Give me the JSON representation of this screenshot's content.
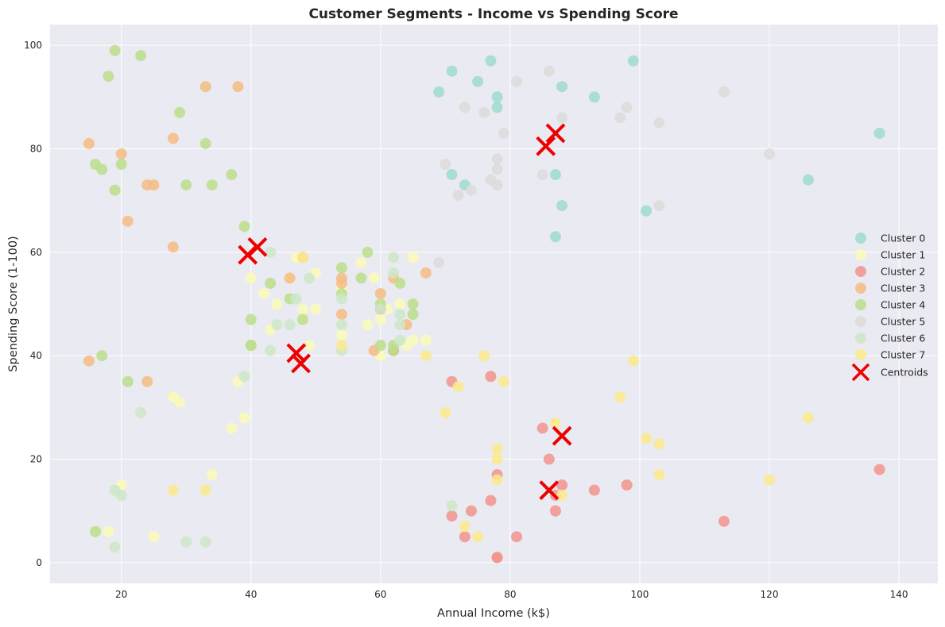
{
  "chart_data": {
    "type": "scatter",
    "title": "Customer Segments - Income vs Spending Score",
    "xlabel": "Annual Income (k$)",
    "ylabel": "Spending Score (1-100)",
    "xlim": [
      9,
      146
    ],
    "ylim": [
      -4,
      104
    ],
    "xticks": [
      20,
      40,
      60,
      80,
      100,
      120,
      140
    ],
    "yticks": [
      0,
      20,
      40,
      60,
      80,
      100
    ],
    "grid": true,
    "legend_position": "right",
    "background": "#eaeaf2",
    "series": [
      {
        "name": "Cluster 0",
        "color": "#9edad0",
        "points": [
          [
            69,
            91
          ],
          [
            71,
            95
          ],
          [
            75,
            93
          ],
          [
            77,
            97
          ],
          [
            78,
            90
          ],
          [
            78,
            88
          ],
          [
            88,
            92
          ],
          [
            93,
            90
          ],
          [
            99,
            97
          ],
          [
            137,
            83
          ],
          [
            126,
            74
          ],
          [
            87,
            75
          ],
          [
            71,
            75
          ],
          [
            73,
            73
          ],
          [
            88,
            69
          ],
          [
            101,
            68
          ],
          [
            87,
            63
          ]
        ]
      },
      {
        "name": "Cluster 1",
        "color": "#fafab8",
        "points": [
          [
            18,
            6
          ],
          [
            20,
            15
          ],
          [
            25,
            5
          ],
          [
            28,
            32
          ],
          [
            29,
            31
          ],
          [
            34,
            17
          ],
          [
            37,
            26
          ],
          [
            38,
            35
          ],
          [
            39,
            28
          ],
          [
            40,
            55
          ],
          [
            42,
            52
          ],
          [
            43,
            45
          ],
          [
            44,
            50
          ],
          [
            46,
            55
          ],
          [
            47,
            59
          ],
          [
            48,
            49
          ],
          [
            48,
            47
          ],
          [
            49,
            42
          ],
          [
            50,
            56
          ],
          [
            50,
            49
          ],
          [
            54,
            53
          ],
          [
            54,
            44
          ],
          [
            57,
            58
          ],
          [
            58,
            46
          ],
          [
            59,
            55
          ],
          [
            60,
            40
          ],
          [
            60,
            47
          ],
          [
            61,
            49
          ],
          [
            62,
            55
          ],
          [
            63,
            50
          ],
          [
            64,
            42
          ],
          [
            65,
            43
          ],
          [
            65,
            59
          ],
          [
            67,
            43
          ]
        ]
      },
      {
        "name": "Cluster 2",
        "color": "#f2948c",
        "points": [
          [
            71,
            35
          ],
          [
            71,
            9
          ],
          [
            73,
            5
          ],
          [
            74,
            10
          ],
          [
            77,
            36
          ],
          [
            77,
            12
          ],
          [
            78,
            17
          ],
          [
            78,
            1
          ],
          [
            78,
            1
          ],
          [
            81,
            5
          ],
          [
            85,
            26
          ],
          [
            86,
            20
          ],
          [
            87,
            13
          ],
          [
            87,
            10
          ],
          [
            88,
            15
          ],
          [
            93,
            14
          ],
          [
            98,
            15
          ],
          [
            113,
            8
          ],
          [
            137,
            18
          ],
          [
            60,
            49
          ],
          [
            62,
            41
          ]
        ]
      },
      {
        "name": "Cluster 3",
        "color": "#f4bc84",
        "points": [
          [
            15,
            81
          ],
          [
            15,
            39
          ],
          [
            20,
            79
          ],
          [
            21,
            66
          ],
          [
            24,
            73
          ],
          [
            25,
            73
          ],
          [
            24,
            35
          ],
          [
            28,
            82
          ],
          [
            28,
            61
          ],
          [
            33,
            92
          ],
          [
            38,
            92
          ],
          [
            46,
            55
          ],
          [
            48,
            59
          ],
          [
            54,
            55
          ],
          [
            54,
            54
          ],
          [
            54,
            48
          ],
          [
            59,
            41
          ],
          [
            60,
            52
          ],
          [
            62,
            55
          ],
          [
            64,
            46
          ],
          [
            67,
            56
          ]
        ]
      },
      {
        "name": "Cluster 4",
        "color": "#bcde8c",
        "points": [
          [
            19,
            99
          ],
          [
            23,
            98
          ],
          [
            18,
            94
          ],
          [
            29,
            87
          ],
          [
            33,
            81
          ],
          [
            16,
            77
          ],
          [
            17,
            76
          ],
          [
            20,
            77
          ],
          [
            19,
            72
          ],
          [
            30,
            73
          ],
          [
            34,
            73
          ],
          [
            37,
            75
          ],
          [
            39,
            65
          ],
          [
            16,
            6
          ],
          [
            17,
            40
          ],
          [
            21,
            35
          ],
          [
            40,
            47
          ],
          [
            40,
            42
          ],
          [
            40,
            42
          ],
          [
            43,
            54
          ],
          [
            46,
            51
          ],
          [
            48,
            47
          ],
          [
            54,
            57
          ],
          [
            54,
            52
          ],
          [
            57,
            55
          ],
          [
            58,
            60
          ],
          [
            60,
            50
          ],
          [
            60,
            42
          ],
          [
            62,
            42
          ],
          [
            62,
            41
          ],
          [
            63,
            54
          ],
          [
            65,
            50
          ],
          [
            65,
            48
          ]
        ]
      },
      {
        "name": "Cluster 5",
        "color": "#dcdcdc",
        "points": [
          [
            70,
            77
          ],
          [
            72,
            71
          ],
          [
            73,
            88
          ],
          [
            74,
            72
          ],
          [
            76,
            87
          ],
          [
            77,
            74
          ],
          [
            78,
            78
          ],
          [
            78,
            76
          ],
          [
            78,
            73
          ],
          [
            79,
            83
          ],
          [
            81,
            93
          ],
          [
            85,
            75
          ],
          [
            86,
            95
          ],
          [
            88,
            86
          ],
          [
            97,
            86
          ],
          [
            98,
            88
          ],
          [
            103,
            85
          ],
          [
            103,
            69
          ],
          [
            113,
            91
          ],
          [
            120,
            79
          ],
          [
            69,
            58
          ]
        ]
      },
      {
        "name": "Cluster 6",
        "color": "#cce8c8",
        "points": [
          [
            19,
            14
          ],
          [
            20,
            13
          ],
          [
            19,
            3
          ],
          [
            23,
            29
          ],
          [
            30,
            4
          ],
          [
            33,
            4
          ],
          [
            39,
            36
          ],
          [
            43,
            41
          ],
          [
            44,
            46
          ],
          [
            46,
            46
          ],
          [
            47,
            51
          ],
          [
            49,
            55
          ],
          [
            54,
            46
          ],
          [
            54,
            41
          ],
          [
            54,
            51
          ],
          [
            60,
            49
          ],
          [
            62,
            59
          ],
          [
            62,
            56
          ],
          [
            63,
            48
          ],
          [
            63,
            46
          ],
          [
            63,
            43
          ],
          [
            71,
            11
          ],
          [
            43,
            60
          ]
        ]
      },
      {
        "name": "Cluster 7",
        "color": "#fcea8c",
        "points": [
          [
            70,
            29
          ],
          [
            72,
            34
          ],
          [
            73,
            7
          ],
          [
            75,
            5
          ],
          [
            76,
            40
          ],
          [
            78,
            22
          ],
          [
            78,
            20
          ],
          [
            78,
            16
          ],
          [
            79,
            35
          ],
          [
            87,
            27
          ],
          [
            88,
            13
          ],
          [
            97,
            32
          ],
          [
            99,
            39
          ],
          [
            101,
            24
          ],
          [
            103,
            23
          ],
          [
            103,
            17
          ],
          [
            120,
            16
          ],
          [
            126,
            28
          ],
          [
            33,
            14
          ],
          [
            28,
            14
          ],
          [
            48,
            59
          ],
          [
            67,
            40
          ],
          [
            54,
            42
          ]
        ]
      }
    ],
    "centroids": {
      "name": "Centroids",
      "color": "#ee0000",
      "points": [
        [
          41,
          61
        ],
        [
          39.5,
          59.5
        ],
        [
          47,
          40.5
        ],
        [
          47.7,
          38.5
        ],
        [
          87,
          83
        ],
        [
          85.5,
          80.5
        ],
        [
          88,
          24.5
        ],
        [
          86,
          14
        ]
      ]
    }
  }
}
